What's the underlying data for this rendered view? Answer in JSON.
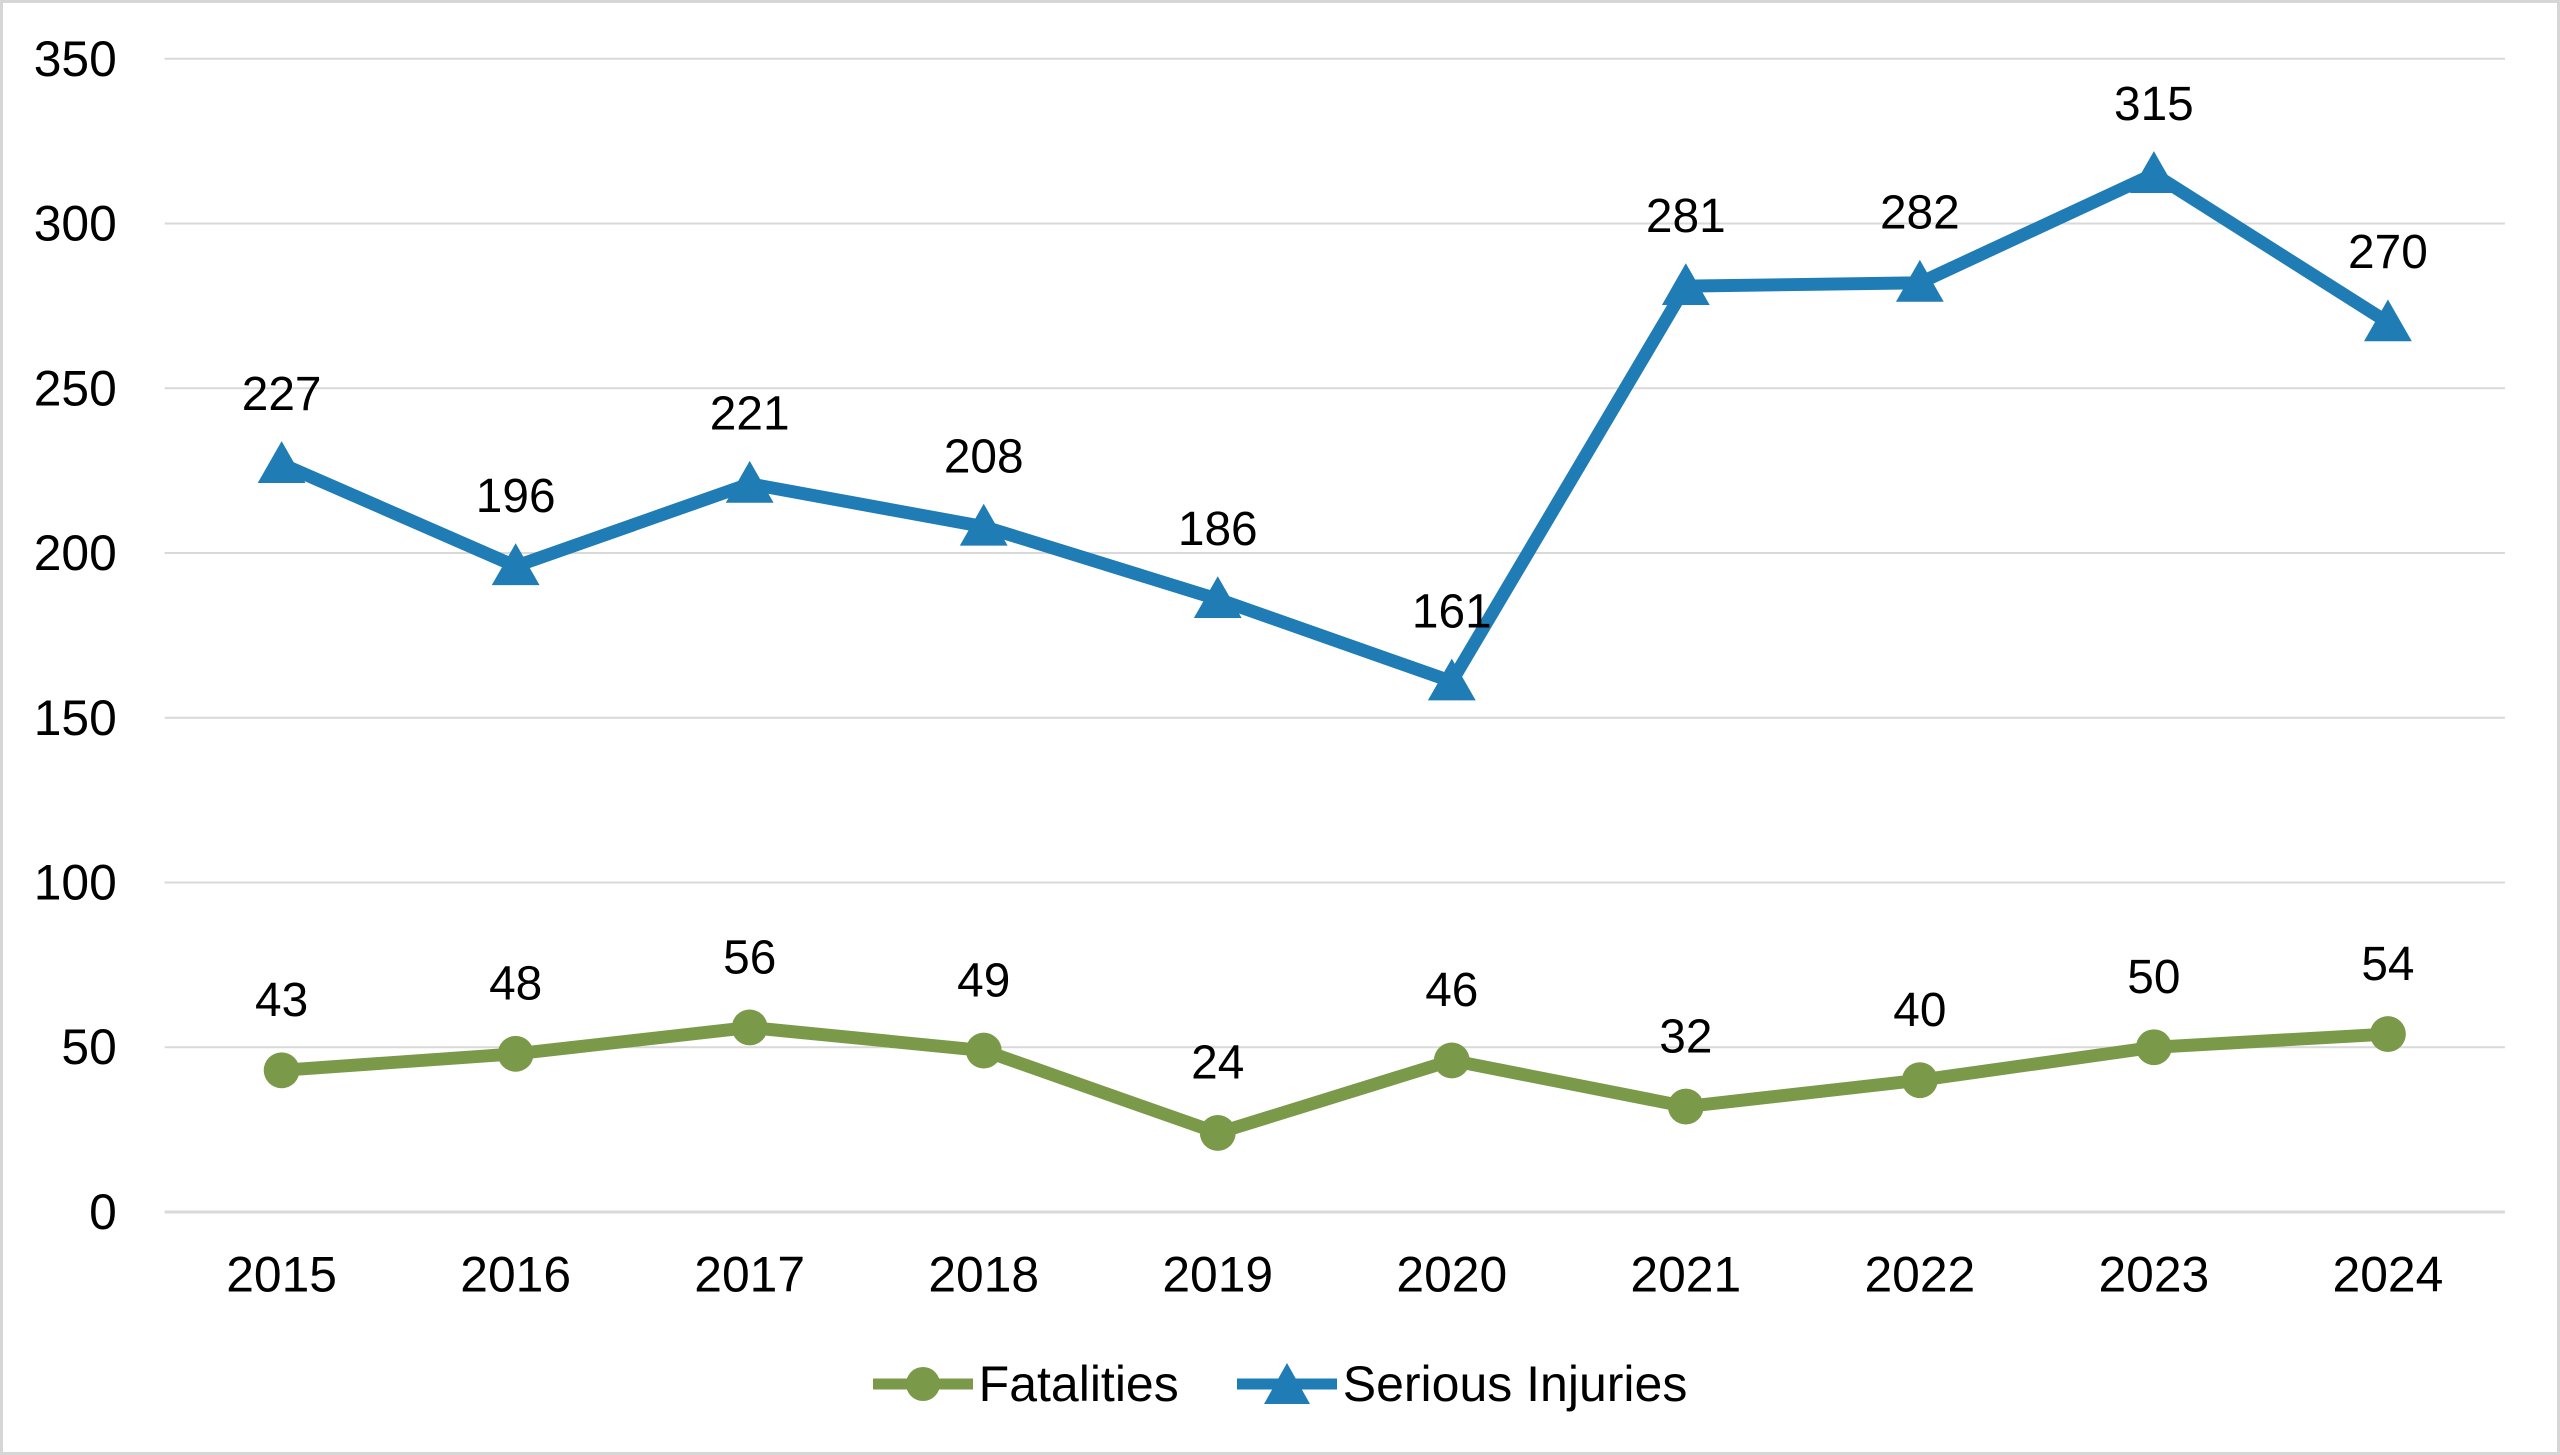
{
  "chart_data": {
    "type": "line",
    "title": "",
    "xlabel": "",
    "ylabel": "",
    "categories": [
      "2015",
      "2016",
      "2017",
      "2018",
      "2019",
      "2020",
      "2021",
      "2022",
      "2023",
      "2024"
    ],
    "series": [
      {
        "name": "Fatalities",
        "marker": "circle",
        "color": "#7A9A4A",
        "values": [
          43,
          48,
          56,
          49,
          24,
          46,
          32,
          40,
          50,
          54
        ]
      },
      {
        "name": "Serious Injuries",
        "marker": "triangle",
        "color": "#1F7CB4",
        "values": [
          227,
          196,
          221,
          208,
          186,
          161,
          281,
          282,
          315,
          270
        ]
      }
    ],
    "ylim": [
      0,
      350
    ],
    "ytick_step": 50,
    "grid": true,
    "grid_color": "#D9D9D9",
    "axis_line_color": "#D9D9D9",
    "text_color": "#000000",
    "background_color": "#FFFFFF",
    "border_color": "#D6D6D6",
    "legend_position": "bottom",
    "data_labels": "above"
  }
}
